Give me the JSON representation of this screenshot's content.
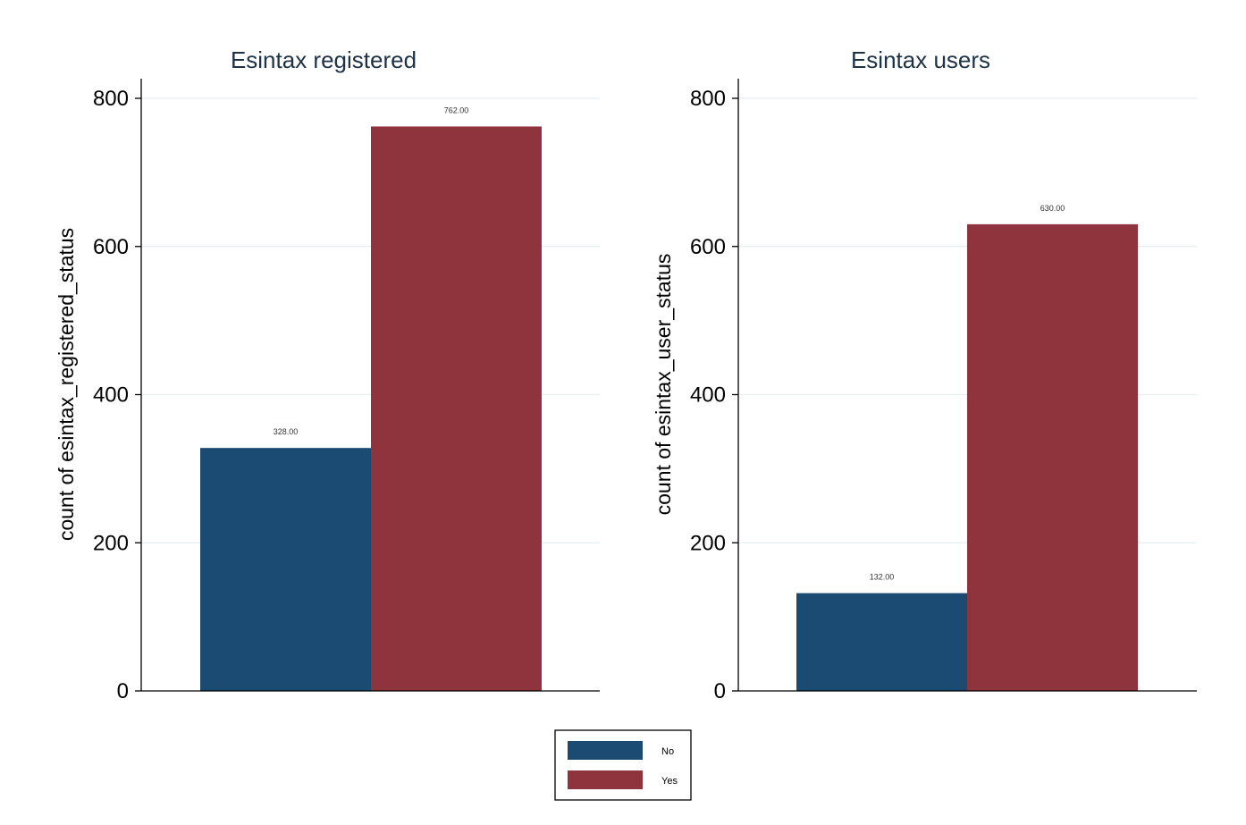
{
  "chart_data": [
    {
      "type": "bar",
      "title": "Esintax registered",
      "xlabel": "",
      "ylabel": "count of esintax_registered_status",
      "ylim": [
        0,
        800
      ],
      "yticks": [
        0,
        200,
        400,
        600,
        800
      ],
      "grid": true,
      "series": [
        {
          "name": "No",
          "values": [
            328
          ]
        },
        {
          "name": "Yes",
          "values": [
            762
          ]
        }
      ],
      "data_labels": [
        "328.00",
        "762.00"
      ]
    },
    {
      "type": "bar",
      "title": "Esintax users",
      "xlabel": "",
      "ylabel": "count of esintax_user_status",
      "ylim": [
        0,
        800
      ],
      "yticks": [
        0,
        200,
        400,
        600,
        800
      ],
      "grid": true,
      "series": [
        {
          "name": "No",
          "values": [
            132
          ]
        },
        {
          "name": "Yes",
          "values": [
            630
          ]
        }
      ],
      "data_labels": [
        "132.00",
        "630.00"
      ]
    }
  ],
  "legend": {
    "placement": "bottom-center",
    "items": [
      {
        "label": "No",
        "color": "#1b4a72"
      },
      {
        "label": "Yes",
        "color": "#8f343c"
      }
    ]
  },
  "colors": {
    "No": "#1b4a72",
    "Yes": "#8f343c",
    "grid": "#e6eef0",
    "axis": "#000000",
    "title": "#1e3246"
  }
}
